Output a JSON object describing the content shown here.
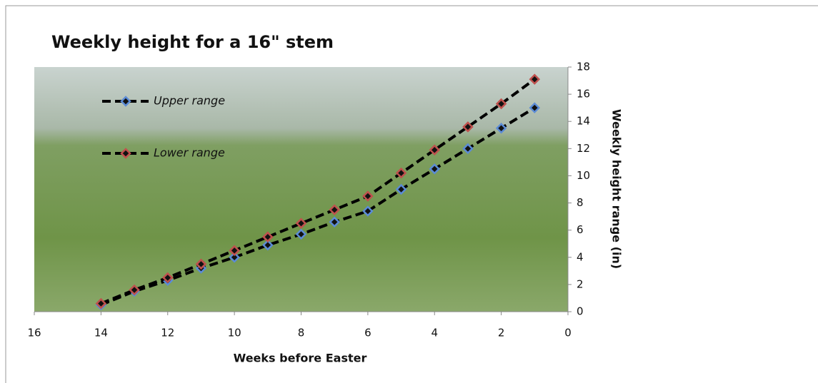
{
  "chart_data": {
    "type": "line",
    "title": "Weekly height for a 16\" stem",
    "x_label": "Weeks before Easter",
    "y_label": "Weekly height range (in)",
    "x": [
      14,
      13,
      12,
      11,
      10,
      9,
      8,
      7,
      6,
      5,
      4,
      3,
      2,
      1
    ],
    "series": [
      {
        "name": "Upper range",
        "color": "#5b8bd6",
        "values": [
          0.5,
          1.5,
          2.3,
          3.2,
          4.0,
          4.9,
          5.7,
          6.6,
          7.4,
          9.0,
          10.5,
          12.0,
          13.5,
          15.0
        ]
      },
      {
        "name": "Lower range",
        "color": "#c0504d",
        "values": [
          0.6,
          1.6,
          2.5,
          3.5,
          4.5,
          5.5,
          6.5,
          7.5,
          8.5,
          10.2,
          11.9,
          13.6,
          15.3,
          17.1
        ]
      }
    ],
    "xlim": [
      16,
      0
    ],
    "xticks": [
      16,
      14,
      12,
      10,
      8,
      6,
      4,
      2,
      0
    ],
    "ylim": [
      0,
      18
    ],
    "yticks": [
      0,
      2,
      4,
      6,
      8,
      10,
      12,
      14,
      16,
      18
    ],
    "legend": "upper left"
  }
}
